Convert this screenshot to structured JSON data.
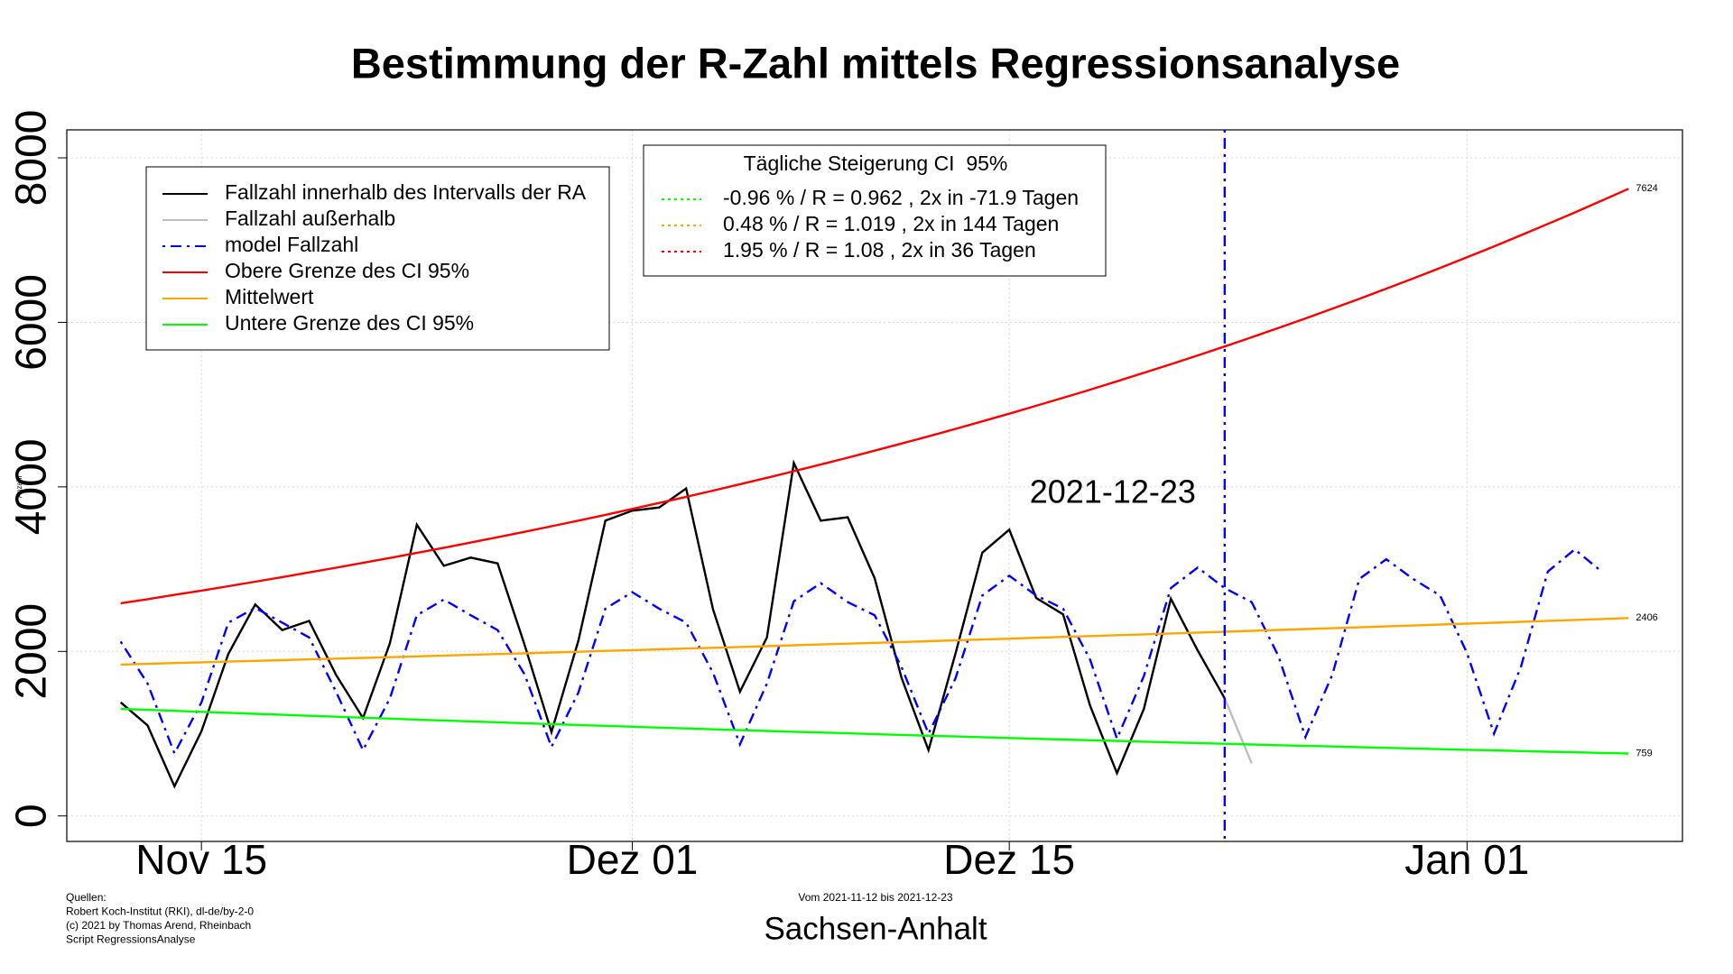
{
  "chart_data": {
    "type": "line",
    "title": "Bestimmung der R-Zahl mittels Regressionsanalyse",
    "subtitle": "Vom 2021-11-12 bis 2021-12-23",
    "xlabel": "Sachsen-Anhalt",
    "ylabel": "Anzahl",
    "sources": [
      "Quellen:",
      "Robert Koch-Institut (RKI), dl-de/by-2-0",
      "(c) 2021 by Thomas Arend, Rheinbach",
      "Script RegressionsAnalyse"
    ],
    "x": [
      "2021-11-12",
      "2021-11-13",
      "2021-11-14",
      "2021-11-15",
      "2021-11-16",
      "2021-11-17",
      "2021-11-18",
      "2021-11-19",
      "2021-11-20",
      "2021-11-21",
      "2021-11-22",
      "2021-11-23",
      "2021-11-24",
      "2021-11-25",
      "2021-11-26",
      "2021-11-27",
      "2021-11-28",
      "2021-11-29",
      "2021-11-30",
      "2021-12-01",
      "2021-12-02",
      "2021-12-03",
      "2021-12-04",
      "2021-12-05",
      "2021-12-06",
      "2021-12-07",
      "2021-12-08",
      "2021-12-09",
      "2021-12-10",
      "2021-12-11",
      "2021-12-12",
      "2021-12-13",
      "2021-12-14",
      "2021-12-15",
      "2021-12-16",
      "2021-12-17",
      "2021-12-18",
      "2021-12-19",
      "2021-12-20",
      "2021-12-21",
      "2021-12-22",
      "2021-12-23",
      "2021-12-24",
      "2021-12-25",
      "2021-12-26",
      "2021-12-27",
      "2021-12-28",
      "2021-12-29",
      "2021-12-30",
      "2021-12-31",
      "2022-01-01",
      "2022-01-02",
      "2022-01-03",
      "2022-01-04",
      "2022-01-05",
      "2022-01-06",
      "2022-01-07"
    ],
    "series": [
      {
        "name": "Fallzahl innerhalb des Intervalls der RA",
        "color": "#000000",
        "linestyle": "solid",
        "values": [
          1380,
          1100,
          360,
          1030,
          1970,
          2570,
          2260,
          2370,
          1715,
          1190,
          2100,
          3540,
          3040,
          3140,
          3070,
          2080,
          1020,
          2130,
          3590,
          3710,
          3750,
          3980,
          2510,
          1510,
          2170,
          4290,
          3590,
          3630,
          2890,
          1680,
          800,
          1970,
          3200,
          3480,
          2650,
          2450,
          1340,
          520,
          1300,
          2640,
          2010,
          1430,
          null,
          null,
          null,
          null,
          null,
          null,
          null,
          null,
          null,
          null,
          null,
          null,
          null,
          null,
          null
        ]
      },
      {
        "name": "Fallzahl außerhalb",
        "color": "#bebebe",
        "linestyle": "solid",
        "values": [
          null,
          null,
          null,
          null,
          null,
          null,
          null,
          null,
          null,
          null,
          null,
          null,
          null,
          null,
          null,
          null,
          null,
          null,
          null,
          null,
          null,
          null,
          null,
          null,
          null,
          null,
          null,
          null,
          null,
          null,
          null,
          null,
          null,
          null,
          null,
          null,
          null,
          null,
          null,
          null,
          null,
          1430,
          640,
          null,
          null,
          null,
          null,
          null,
          null,
          null,
          null,
          null,
          null,
          null,
          null,
          null,
          null
        ]
      },
      {
        "name": "model Fallzahl",
        "color": "#0000ff",
        "linestyle": "dashdot",
        "values": [
          2120,
          1610,
          760,
          1380,
          2350,
          2530,
          2350,
          2170,
          1510,
          800,
          1430,
          2440,
          2630,
          2440,
          2260,
          1720,
          840,
          1500,
          2520,
          2720,
          2520,
          2350,
          1740,
          870,
          1610,
          2610,
          2830,
          2600,
          2440,
          1810,
          1000,
          1670,
          2680,
          2920,
          2680,
          2520,
          1900,
          940,
          1700,
          2770,
          3020,
          2770,
          2600,
          1940,
          960,
          1720,
          2880,
          3120,
          2880,
          2680,
          1980,
          1000,
          1810,
          2970,
          3240,
          2970,
          null
        ]
      },
      {
        "name": "Obere Grenze des CI 95%",
        "color": "#ff0000",
        "linestyle": "solid",
        "end_label": true,
        "values": [
          2585,
          2635,
          2687,
          2739,
          2793,
          2847,
          2903,
          2960,
          3017,
          3076,
          3136,
          3197,
          3260,
          3323,
          3388,
          3454,
          3522,
          3590,
          3660,
          3732,
          3805,
          3879,
          3955,
          4032,
          4110,
          4190,
          4272,
          4355,
          4440,
          4527,
          4615,
          4705,
          4797,
          4890,
          4986,
          5083,
          5182,
          5283,
          5386,
          5491,
          5598,
          5707,
          5819,
          5932,
          6048,
          6166,
          6286,
          6409,
          6534,
          6661,
          6791,
          6923,
          7058,
          7196,
          7336,
          7479,
          7624
        ]
      },
      {
        "name": "Mittelwert",
        "color": "#ffa500",
        "linestyle": "solid",
        "end_label": true,
        "values": [
          1840,
          1849,
          1858,
          1867,
          1876,
          1885,
          1894,
          1903,
          1912,
          1921,
          1930,
          1940,
          1949,
          1958,
          1968,
          1977,
          1987,
          1996,
          2006,
          2015,
          2025,
          2035,
          2044,
          2054,
          2064,
          2074,
          2084,
          2094,
          2104,
          2114,
          2124,
          2135,
          2145,
          2155,
          2166,
          2176,
          2186,
          2197,
          2207,
          2218,
          2229,
          2239,
          2250,
          2261,
          2272,
          2282,
          2293,
          2304,
          2315,
          2327,
          2338,
          2349,
          2360,
          2372,
          2383,
          2394,
          2406
        ]
      },
      {
        "name": "Untere Grenze des CI 95%",
        "color": "#00ff00",
        "linestyle": "solid",
        "end_label": true,
        "values": [
          1302,
          1290,
          1277,
          1265,
          1253,
          1241,
          1229,
          1217,
          1206,
          1194,
          1183,
          1171,
          1160,
          1149,
          1138,
          1127,
          1116,
          1105,
          1095,
          1084,
          1074,
          1064,
          1053,
          1043,
          1033,
          1023,
          1014,
          1004,
          994,
          985,
          975,
          966,
          957,
          948,
          938,
          929,
          920,
          912,
          903,
          894,
          886,
          877,
          869,
          860,
          852,
          844,
          836,
          828,
          820,
          812,
          804,
          797,
          789,
          781,
          774,
          766,
          759
        ]
      }
    ],
    "legend2": {
      "title": "Tägliche Steigerung CI  95%",
      "items": [
        {
          "text": "-0.96 % / R = 0.962 , 2x in -71.9 Tagen",
          "color": "#00ff00"
        },
        {
          "text": "0.48 % / R = 1.019 , 2x in 144 Tagen",
          "color": "#ffa500"
        },
        {
          "text": "1.95 % / R = 1.08 , 2x in 36 Tagen",
          "color": "#ff0000"
        }
      ]
    },
    "vline": {
      "x": "2021-12-23",
      "label": "2021-12-23",
      "color": "#0000ff"
    },
    "xlim": [
      "2021-11-10",
      "2022-01-09"
    ],
    "xticks": [
      {
        "value": "2021-11-15",
        "label": "Nov 15"
      },
      {
        "value": "2021-12-01",
        "label": "Dez 01"
      },
      {
        "value": "2021-12-15",
        "label": "Dez 15"
      },
      {
        "value": "2022-01-01",
        "label": "Jan 01"
      }
    ],
    "ylim": [
      -310,
      8340
    ],
    "yticks": [
      0,
      2000,
      4000,
      6000,
      8000
    ],
    "grid": true
  }
}
